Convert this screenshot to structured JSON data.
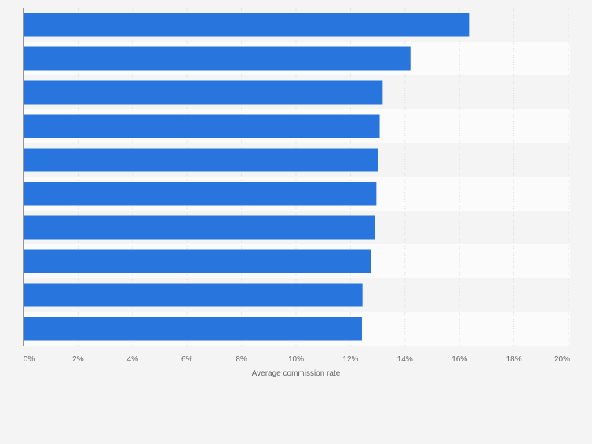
{
  "chart_data": {
    "type": "bar",
    "orientation": "horizontal",
    "title": "",
    "xlabel": "Average commission rate",
    "ylabel": "",
    "xlim": [
      0,
      20
    ],
    "x_ticks": [
      "0%",
      "2%",
      "4%",
      "6%",
      "8%",
      "10%",
      "12%",
      "14%",
      "16%",
      "18%",
      "20%"
    ],
    "categories": [
      "",
      "",
      "",
      "",
      "",
      "",
      "",
      "",
      "",
      ""
    ],
    "values": [
      16.35,
      14.2,
      13.18,
      13.07,
      13.02,
      12.95,
      12.9,
      12.75,
      12.44,
      12.42
    ],
    "grid": true,
    "legend": "none"
  },
  "colors": {
    "bar": "#2876dd",
    "band_light": "#fbfbfb",
    "band_dark": "#f4f4f4",
    "gridline": "#dcdcdc",
    "axis": "#333333",
    "tick_text": "#666666",
    "label_text": "#666666"
  }
}
